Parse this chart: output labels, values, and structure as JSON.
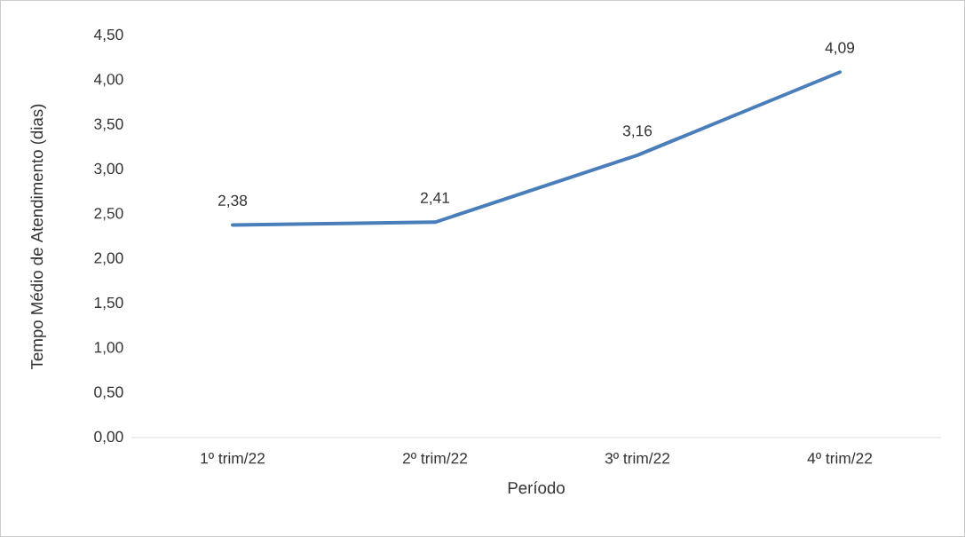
{
  "chart_data": {
    "type": "line",
    "xlabel": "Período",
    "ylabel": "Tempo Médio de Atendimento (dias)",
    "categories": [
      "1º trim/22",
      "2º trim/22",
      "3º trim/22",
      "4º trim/22"
    ],
    "series": [
      {
        "color": "#4a7ebb",
        "values": [
          2.38,
          2.41,
          3.16,
          4.09
        ],
        "value_labels": [
          "2,38",
          "2,41",
          "3,16",
          "4,09"
        ]
      }
    ],
    "ylim": [
      0,
      4.5
    ],
    "yticks": [
      {
        "value": 0,
        "label": "0,00"
      },
      {
        "value": 0.5,
        "label": "0,50"
      },
      {
        "value": 1,
        "label": "1,00"
      },
      {
        "value": 1.5,
        "label": "1,50"
      },
      {
        "value": 2,
        "label": "2,00"
      },
      {
        "value": 2.5,
        "label": "2,50"
      },
      {
        "value": 3,
        "label": "3,00"
      },
      {
        "value": 3.5,
        "label": "3,50"
      },
      {
        "value": 4,
        "label": "4,00"
      },
      {
        "value": 4.5,
        "label": "4,50"
      }
    ],
    "grid": false,
    "marker": "none",
    "line_style": "solid"
  }
}
